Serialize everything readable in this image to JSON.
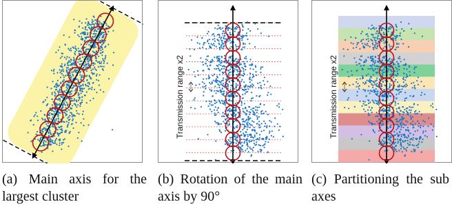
{
  "panels": [
    {
      "caption": "(a) Main axis for the largest cluster"
    },
    {
      "caption": "(b) Rotation of the main axis by 90°",
      "vertical_label": "Transmission range x2"
    },
    {
      "caption": "(c) Partitioning the sub axes",
      "vertical_label": "Transmission range x2"
    }
  ],
  "colors": {
    "points": "#1f77c4",
    "circles": "#b8141c",
    "highlight_region": "#fbf3a8",
    "partition_bands": [
      "#cfd8ee",
      "#c6e3b0",
      "#f8cfb2",
      "#d2d2d2",
      "#7fd39a",
      "#fbe7b6",
      "#c9d7f0",
      "#fbf0c0",
      "#df8c8c",
      "#d3bfe4",
      "#c8c8c8",
      "#f6a9a9"
    ]
  }
}
